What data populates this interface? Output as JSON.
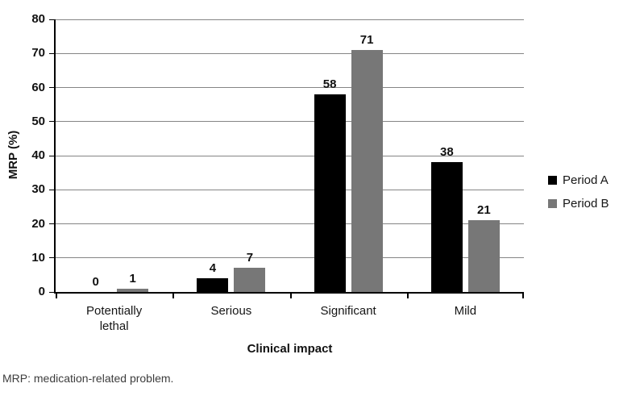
{
  "chart_data": {
    "type": "bar",
    "title": "",
    "categories": [
      "Potentially lethal",
      "Serious",
      "Significant",
      "Mild"
    ],
    "series": [
      {
        "name": "Period A",
        "color": "#000000",
        "values": [
          0,
          4,
          58,
          38
        ]
      },
      {
        "name": "Period B",
        "color": "#777777",
        "values": [
          1,
          7,
          71,
          21
        ]
      }
    ],
    "xlabel": "Clinical impact",
    "ylabel": "MRP (%)",
    "ylim": [
      0,
      80
    ],
    "ytick_step": 10,
    "yticks": [
      0,
      10,
      20,
      30,
      40,
      50,
      60,
      70,
      80
    ],
    "grid": true,
    "legend_position": "right",
    "legend": [
      "Period A",
      "Period B"
    ]
  },
  "colors": {
    "background": "#ffffff",
    "axis": "#000000",
    "gridline": "#858585",
    "bar_period_a": "#000000",
    "bar_period_b": "#777777"
  },
  "footnote": "MRP: medication-related problem."
}
